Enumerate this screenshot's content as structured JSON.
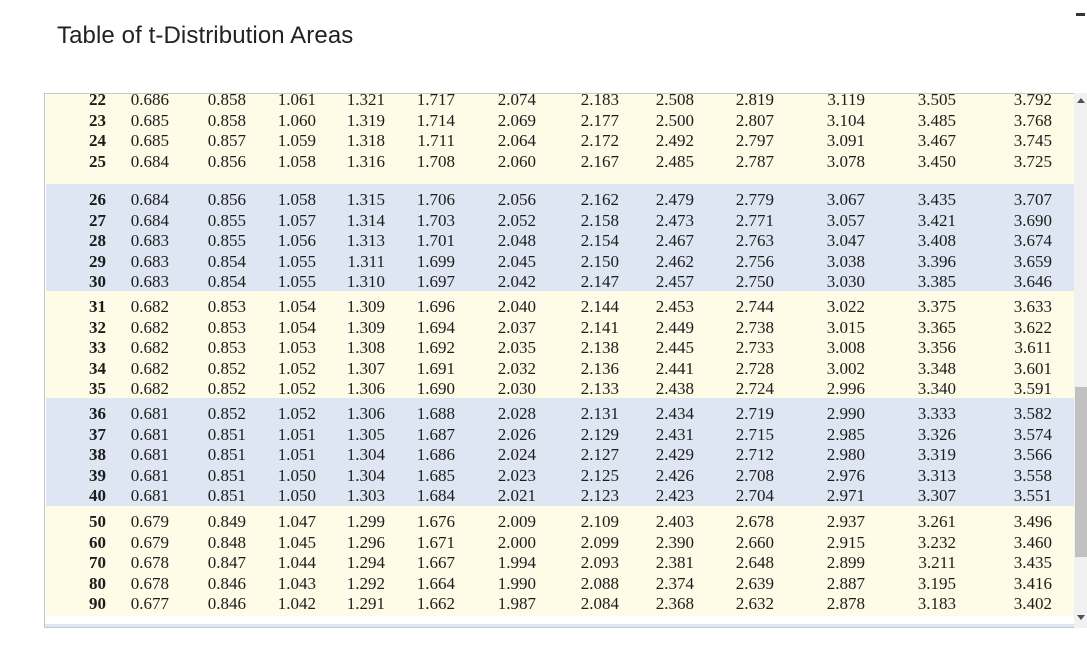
{
  "page": {
    "title": "Table of t-Distribution Areas"
  },
  "table": {
    "groups": [
      {
        "shade": "light",
        "rows": [
          [
            "22",
            "0.686",
            "0.858",
            "1.061",
            "1.321",
            "1.717",
            "2.074",
            "2.183",
            "2.508",
            "2.819",
            "3.119",
            "3.505",
            "3.792"
          ],
          [
            "23",
            "0.685",
            "0.858",
            "1.060",
            "1.319",
            "1.714",
            "2.069",
            "2.177",
            "2.500",
            "2.807",
            "3.104",
            "3.485",
            "3.768"
          ],
          [
            "24",
            "0.685",
            "0.857",
            "1.059",
            "1.318",
            "1.711",
            "2.064",
            "2.172",
            "2.492",
            "2.797",
            "3.091",
            "3.467",
            "3.745"
          ],
          [
            "25",
            "0.684",
            "0.856",
            "1.058",
            "1.316",
            "1.708",
            "2.060",
            "2.167",
            "2.485",
            "2.787",
            "3.078",
            "3.450",
            "3.725"
          ]
        ]
      },
      {
        "shade": "blue",
        "rows": [
          [
            "26",
            "0.684",
            "0.856",
            "1.058",
            "1.315",
            "1.706",
            "2.056",
            "2.162",
            "2.479",
            "2.779",
            "3.067",
            "3.435",
            "3.707"
          ],
          [
            "27",
            "0.684",
            "0.855",
            "1.057",
            "1.314",
            "1.703",
            "2.052",
            "2.158",
            "2.473",
            "2.771",
            "3.057",
            "3.421",
            "3.690"
          ],
          [
            "28",
            "0.683",
            "0.855",
            "1.056",
            "1.313",
            "1.701",
            "2.048",
            "2.154",
            "2.467",
            "2.763",
            "3.047",
            "3.408",
            "3.674"
          ],
          [
            "29",
            "0.683",
            "0.854",
            "1.055",
            "1.311",
            "1.699",
            "2.045",
            "2.150",
            "2.462",
            "2.756",
            "3.038",
            "3.396",
            "3.659"
          ],
          [
            "30",
            "0.683",
            "0.854",
            "1.055",
            "1.310",
            "1.697",
            "2.042",
            "2.147",
            "2.457",
            "2.750",
            "3.030",
            "3.385",
            "3.646"
          ]
        ]
      },
      {
        "shade": "light",
        "rows": [
          [
            "31",
            "0.682",
            "0.853",
            "1.054",
            "1.309",
            "1.696",
            "2.040",
            "2.144",
            "2.453",
            "2.744",
            "3.022",
            "3.375",
            "3.633"
          ],
          [
            "32",
            "0.682",
            "0.853",
            "1.054",
            "1.309",
            "1.694",
            "2.037",
            "2.141",
            "2.449",
            "2.738",
            "3.015",
            "3.365",
            "3.622"
          ],
          [
            "33",
            "0.682",
            "0.853",
            "1.053",
            "1.308",
            "1.692",
            "2.035",
            "2.138",
            "2.445",
            "2.733",
            "3.008",
            "3.356",
            "3.611"
          ],
          [
            "34",
            "0.682",
            "0.852",
            "1.052",
            "1.307",
            "1.691",
            "2.032",
            "2.136",
            "2.441",
            "2.728",
            "3.002",
            "3.348",
            "3.601"
          ],
          [
            "35",
            "0.682",
            "0.852",
            "1.052",
            "1.306",
            "1.690",
            "2.030",
            "2.133",
            "2.438",
            "2.724",
            "2.996",
            "3.340",
            "3.591"
          ]
        ]
      },
      {
        "shade": "blue",
        "rows": [
          [
            "36",
            "0.681",
            "0.852",
            "1.052",
            "1.306",
            "1.688",
            "2.028",
            "2.131",
            "2.434",
            "2.719",
            "2.990",
            "3.333",
            "3.582"
          ],
          [
            "37",
            "0.681",
            "0.851",
            "1.051",
            "1.305",
            "1.687",
            "2.026",
            "2.129",
            "2.431",
            "2.715",
            "2.985",
            "3.326",
            "3.574"
          ],
          [
            "38",
            "0.681",
            "0.851",
            "1.051",
            "1.304",
            "1.686",
            "2.024",
            "2.127",
            "2.429",
            "2.712",
            "2.980",
            "3.319",
            "3.566"
          ],
          [
            "39",
            "0.681",
            "0.851",
            "1.050",
            "1.304",
            "1.685",
            "2.023",
            "2.125",
            "2.426",
            "2.708",
            "2.976",
            "3.313",
            "3.558"
          ],
          [
            "40",
            "0.681",
            "0.851",
            "1.050",
            "1.303",
            "1.684",
            "2.021",
            "2.123",
            "2.423",
            "2.704",
            "2.971",
            "3.307",
            "3.551"
          ]
        ]
      },
      {
        "shade": "light",
        "rows": [
          [
            "50",
            "0.679",
            "0.849",
            "1.047",
            "1.299",
            "1.676",
            "2.009",
            "2.109",
            "2.403",
            "2.678",
            "2.937",
            "3.261",
            "3.496"
          ],
          [
            "60",
            "0.679",
            "0.848",
            "1.045",
            "1.296",
            "1.671",
            "2.000",
            "2.099",
            "2.390",
            "2.660",
            "2.915",
            "3.232",
            "3.460"
          ],
          [
            "70",
            "0.678",
            "0.847",
            "1.044",
            "1.294",
            "1.667",
            "1.994",
            "2.093",
            "2.381",
            "2.648",
            "2.899",
            "3.211",
            "3.435"
          ],
          [
            "80",
            "0.678",
            "0.846",
            "1.043",
            "1.292",
            "1.664",
            "1.990",
            "2.088",
            "2.374",
            "2.639",
            "2.887",
            "3.195",
            "3.416"
          ],
          [
            "90",
            "0.677",
            "0.846",
            "1.042",
            "1.291",
            "1.662",
            "1.987",
            "2.084",
            "2.368",
            "2.632",
            "2.878",
            "3.183",
            "3.402"
          ]
        ]
      }
    ]
  },
  "scrollbar": {
    "scroll_position": 0.55
  },
  "icons": {
    "up": "scroll-up-arrow-icon",
    "down": "scroll-down-arrow-icon"
  }
}
